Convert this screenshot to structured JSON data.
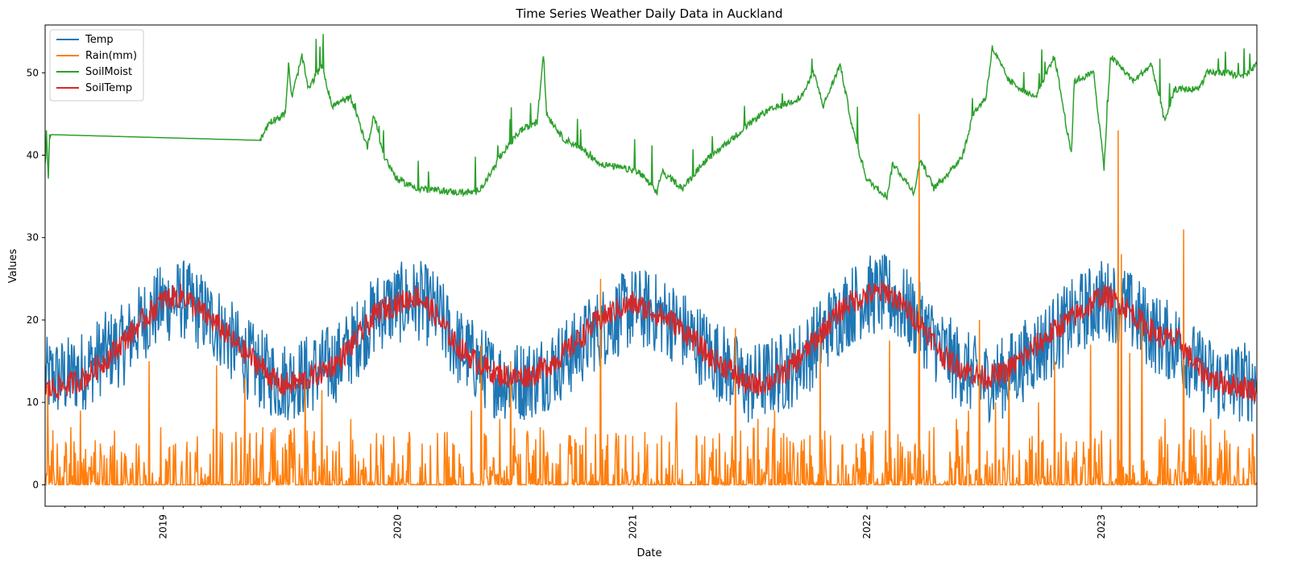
{
  "chart_data": {
    "type": "line",
    "title": "Time Series Weather Daily Data in Auckland",
    "xlabel": "Date",
    "ylabel": "Values",
    "xlim": [
      "2018-07-01",
      "2023-08-31"
    ],
    "ylim": [
      -2.6,
      55.8
    ],
    "x_ticks": [
      "2019",
      "2020",
      "2021",
      "2022",
      "2023"
    ],
    "y_ticks": [
      "0",
      "10",
      "20",
      "30",
      "40",
      "50"
    ],
    "legend_position": "top-left",
    "grid": false,
    "series": [
      {
        "name": "Temp",
        "color": "#1f77b4",
        "points": [
          [
            "2018-07-01",
            13
          ],
          [
            "2018-08-01",
            13
          ],
          [
            "2018-09-01",
            14
          ],
          [
            "2018-10-01",
            16
          ],
          [
            "2018-11-01",
            17
          ],
          [
            "2018-12-01",
            20
          ],
          [
            "2019-01-01",
            22
          ],
          [
            "2019-02-01",
            22.5
          ],
          [
            "2019-03-01",
            21
          ],
          [
            "2019-04-01",
            19
          ],
          [
            "2019-05-01",
            16
          ],
          [
            "2019-06-01",
            14
          ],
          [
            "2019-07-01",
            12.5
          ],
          [
            "2019-08-01",
            13
          ],
          [
            "2019-09-01",
            14
          ],
          [
            "2019-10-01",
            15
          ],
          [
            "2019-11-01",
            18
          ],
          [
            "2019-12-01",
            21
          ],
          [
            "2020-01-01",
            22
          ],
          [
            "2020-02-01",
            22.5
          ],
          [
            "2020-03-01",
            21
          ],
          [
            "2020-04-01",
            17
          ],
          [
            "2020-05-01",
            15
          ],
          [
            "2020-06-01",
            13
          ],
          [
            "2020-07-01",
            12.5
          ],
          [
            "2020-08-01",
            13
          ],
          [
            "2020-09-01",
            14.5
          ],
          [
            "2020-10-01",
            16
          ],
          [
            "2020-11-01",
            18.5
          ],
          [
            "2020-12-01",
            20
          ],
          [
            "2021-01-01",
            21.5
          ],
          [
            "2021-02-01",
            21
          ],
          [
            "2021-03-01",
            20
          ],
          [
            "2021-04-01",
            18
          ],
          [
            "2021-05-01",
            16
          ],
          [
            "2021-06-01",
            14
          ],
          [
            "2021-07-01",
            12
          ],
          [
            "2021-08-01",
            13
          ],
          [
            "2021-09-01",
            14
          ],
          [
            "2021-10-01",
            16
          ],
          [
            "2021-11-01",
            19
          ],
          [
            "2021-12-01",
            21.5
          ],
          [
            "2022-01-01",
            23
          ],
          [
            "2022-02-01",
            23
          ],
          [
            "2022-03-01",
            21.5
          ],
          [
            "2022-04-01",
            19
          ],
          [
            "2022-05-01",
            16
          ],
          [
            "2022-06-01",
            14
          ],
          [
            "2022-07-01",
            12.5
          ],
          [
            "2022-08-01",
            13
          ],
          [
            "2022-09-01",
            15
          ],
          [
            "2022-10-01",
            17
          ],
          [
            "2022-11-01",
            19
          ],
          [
            "2022-12-01",
            21
          ],
          [
            "2023-01-01",
            22.5
          ],
          [
            "2023-02-01",
            22
          ],
          [
            "2023-03-01",
            20
          ],
          [
            "2023-04-01",
            18
          ],
          [
            "2023-05-01",
            17
          ],
          [
            "2023-06-01",
            14
          ],
          [
            "2023-07-01",
            12.5
          ],
          [
            "2023-08-31",
            12.5
          ]
        ]
      },
      {
        "name": "Rain(mm)",
        "color": "#ff7f0e",
        "baseline": 0,
        "peaks": [
          [
            "2018-07-05",
            12
          ],
          [
            "2018-07-20",
            5
          ],
          [
            "2018-08-10",
            7
          ],
          [
            "2018-08-25",
            9
          ],
          [
            "2018-09-15",
            4
          ],
          [
            "2018-10-10",
            3
          ],
          [
            "2018-10-28",
            4
          ],
          [
            "2018-11-20",
            5
          ],
          [
            "2018-12-10",
            15
          ],
          [
            "2018-12-28",
            7
          ],
          [
            "2019-01-20",
            5
          ],
          [
            "2019-02-20",
            4
          ],
          [
            "2019-03-25",
            14.5
          ],
          [
            "2019-04-25",
            4
          ],
          [
            "2019-05-08",
            13
          ],
          [
            "2019-06-05",
            7
          ],
          [
            "2019-07-10",
            5
          ],
          [
            "2019-08-10",
            13
          ],
          [
            "2019-09-05",
            11.5
          ],
          [
            "2019-10-20",
            8
          ],
          [
            "2019-11-20",
            5
          ],
          [
            "2019-12-10",
            6
          ],
          [
            "2020-02-08",
            5
          ],
          [
            "2020-03-15",
            4
          ],
          [
            "2020-04-25",
            9
          ],
          [
            "2020-05-10",
            17
          ],
          [
            "2020-06-08",
            8
          ],
          [
            "2020-06-25",
            15
          ],
          [
            "2020-07-20",
            6
          ],
          [
            "2020-08-10",
            7
          ],
          [
            "2020-09-10",
            5
          ],
          [
            "2020-10-20",
            7
          ],
          [
            "2020-11-12",
            25
          ],
          [
            "2020-12-10",
            6
          ],
          [
            "2021-01-10",
            4
          ],
          [
            "2021-02-08",
            5
          ],
          [
            "2021-03-10",
            10
          ],
          [
            "2021-04-10",
            6
          ],
          [
            "2021-05-25",
            4
          ],
          [
            "2021-06-10",
            19
          ],
          [
            "2021-07-15",
            8
          ],
          [
            "2021-08-10",
            9
          ],
          [
            "2021-09-20",
            4
          ],
          [
            "2021-10-20",
            18
          ],
          [
            "2021-11-05",
            6
          ],
          [
            "2021-12-15",
            5
          ],
          [
            "2022-02-05",
            17.5
          ],
          [
            "2022-03-23",
            45
          ],
          [
            "2022-04-15",
            7
          ],
          [
            "2022-05-20",
            8
          ],
          [
            "2022-06-08",
            9
          ],
          [
            "2022-06-25",
            20
          ],
          [
            "2022-07-20",
            10
          ],
          [
            "2022-08-10",
            14
          ],
          [
            "2022-09-25",
            10
          ],
          [
            "2022-10-20",
            15
          ],
          [
            "2022-11-20",
            4
          ],
          [
            "2022-12-15",
            17
          ],
          [
            "2023-01-27",
            43
          ],
          [
            "2023-02-01",
            28
          ],
          [
            "2023-02-14",
            16
          ],
          [
            "2023-03-05",
            21
          ],
          [
            "2023-04-10",
            8
          ],
          [
            "2023-05-09",
            31
          ],
          [
            "2023-05-20",
            7
          ],
          [
            "2023-06-20",
            8
          ],
          [
            "2023-07-20",
            5
          ],
          [
            "2023-08-20",
            3
          ]
        ]
      },
      {
        "name": "SoilMoist",
        "color": "#2ca02c",
        "points": [
          [
            "2018-07-01",
            36.5
          ],
          [
            "2018-07-03",
            43
          ],
          [
            "2018-07-06",
            37.5
          ],
          [
            "2018-07-08",
            42.5
          ],
          [
            "2019-06-01",
            41.8
          ],
          [
            "2019-06-15",
            44
          ],
          [
            "2019-07-10",
            45
          ],
          [
            "2019-07-15",
            51
          ],
          [
            "2019-07-20",
            47
          ],
          [
            "2019-08-05",
            52
          ],
          [
            "2019-08-15",
            48
          ],
          [
            "2019-09-05",
            51
          ],
          [
            "2019-09-20",
            46
          ],
          [
            "2019-10-20",
            47
          ],
          [
            "2019-11-15",
            41
          ],
          [
            "2019-11-25",
            45
          ],
          [
            "2019-12-10",
            40
          ],
          [
            "2020-01-01",
            37
          ],
          [
            "2020-02-01",
            36
          ],
          [
            "2020-04-01",
            35.5
          ],
          [
            "2020-05-01",
            35.5
          ],
          [
            "2020-05-15",
            36.5
          ],
          [
            "2020-06-10",
            40
          ],
          [
            "2020-07-10",
            43
          ],
          [
            "2020-08-05",
            44
          ],
          [
            "2020-08-15",
            52
          ],
          [
            "2020-08-20",
            45
          ],
          [
            "2020-09-15",
            42
          ],
          [
            "2020-10-10",
            41
          ],
          [
            "2020-11-10",
            39
          ],
          [
            "2021-01-10",
            38
          ],
          [
            "2021-02-08",
            35.5
          ],
          [
            "2021-02-15",
            38
          ],
          [
            "2021-03-20",
            36
          ],
          [
            "2021-04-20",
            39
          ],
          [
            "2021-05-20",
            41
          ],
          [
            "2021-06-20",
            43
          ],
          [
            "2021-07-20",
            45
          ],
          [
            "2021-08-20",
            46
          ],
          [
            "2021-09-20",
            47
          ],
          [
            "2021-10-10",
            50
          ],
          [
            "2021-10-25",
            46
          ],
          [
            "2021-11-20",
            51
          ],
          [
            "2021-12-10",
            43
          ],
          [
            "2022-01-01",
            37
          ],
          [
            "2022-02-01",
            35
          ],
          [
            "2022-02-10",
            39
          ],
          [
            "2022-03-15",
            35.5
          ],
          [
            "2022-03-25",
            39.5
          ],
          [
            "2022-04-15",
            36
          ],
          [
            "2022-05-10",
            38
          ],
          [
            "2022-05-30",
            40
          ],
          [
            "2022-06-15",
            45
          ],
          [
            "2022-07-05",
            47
          ],
          [
            "2022-07-15",
            53
          ],
          [
            "2022-08-10",
            49
          ],
          [
            "2022-09-20",
            47
          ],
          [
            "2022-10-20",
            52
          ],
          [
            "2022-11-15",
            40
          ],
          [
            "2022-11-20",
            49
          ],
          [
            "2022-12-20",
            50
          ],
          [
            "2023-01-05",
            38.5
          ],
          [
            "2023-01-15",
            52
          ],
          [
            "2023-02-20",
            49
          ],
          [
            "2023-03-20",
            51
          ],
          [
            "2023-04-10",
            44
          ],
          [
            "2023-04-25",
            48
          ],
          [
            "2023-06-01",
            48
          ],
          [
            "2023-06-15",
            50
          ],
          [
            "2023-07-15",
            50
          ],
          [
            "2023-08-10",
            49.5
          ],
          [
            "2023-08-31",
            51
          ]
        ]
      },
      {
        "name": "SoilTemp",
        "color": "#d62728",
        "points": [
          [
            "2018-07-01",
            11.5
          ],
          [
            "2018-08-01",
            12
          ],
          [
            "2018-09-01",
            13
          ],
          [
            "2018-10-01",
            15
          ],
          [
            "2018-11-01",
            17.5
          ],
          [
            "2018-12-01",
            20
          ],
          [
            "2019-01-01",
            22.5
          ],
          [
            "2019-02-01",
            23
          ],
          [
            "2019-03-01",
            21
          ],
          [
            "2019-04-01",
            19
          ],
          [
            "2019-05-01",
            16.5
          ],
          [
            "2019-06-01",
            14.5
          ],
          [
            "2019-07-01",
            12
          ],
          [
            "2019-08-01",
            12.5
          ],
          [
            "2019-09-01",
            13.5
          ],
          [
            "2019-10-01",
            15
          ],
          [
            "2019-11-01",
            18
          ],
          [
            "2019-12-01",
            21
          ],
          [
            "2020-01-01",
            22
          ],
          [
            "2020-02-01",
            23
          ],
          [
            "2020-03-01",
            20.5
          ],
          [
            "2020-04-01",
            17
          ],
          [
            "2020-05-01",
            15
          ],
          [
            "2020-06-01",
            13.5
          ],
          [
            "2020-07-01",
            13
          ],
          [
            "2020-08-01",
            13.5
          ],
          [
            "2020-09-01",
            15
          ],
          [
            "2020-10-01",
            17
          ],
          [
            "2020-11-01",
            19.5
          ],
          [
            "2020-12-01",
            21
          ],
          [
            "2021-01-01",
            22
          ],
          [
            "2021-02-01",
            21
          ],
          [
            "2021-03-01",
            20
          ],
          [
            "2021-04-01",
            18
          ],
          [
            "2021-05-01",
            15.5
          ],
          [
            "2021-06-01",
            14
          ],
          [
            "2021-07-01",
            12
          ],
          [
            "2021-08-01",
            12.5
          ],
          [
            "2021-09-01",
            14
          ],
          [
            "2021-10-01",
            16.5
          ],
          [
            "2021-11-01",
            19.5
          ],
          [
            "2021-12-01",
            22
          ],
          [
            "2022-01-01",
            23
          ],
          [
            "2022-02-01",
            23.5
          ],
          [
            "2022-03-01",
            21.5
          ],
          [
            "2022-04-01",
            19
          ],
          [
            "2022-05-01",
            15.5
          ],
          [
            "2022-06-01",
            14
          ],
          [
            "2022-07-01",
            13
          ],
          [
            "2022-08-01",
            13.5
          ],
          [
            "2022-09-01",
            15.5
          ],
          [
            "2022-10-01",
            17.5
          ],
          [
            "2022-11-01",
            19.5
          ],
          [
            "2022-12-01",
            21
          ],
          [
            "2023-01-01",
            23
          ],
          [
            "2023-02-01",
            22
          ],
          [
            "2023-03-01",
            20
          ],
          [
            "2023-04-01",
            18
          ],
          [
            "2023-05-01",
            17.5
          ],
          [
            "2023-06-01",
            14
          ],
          [
            "2023-07-01",
            12.5
          ],
          [
            "2023-08-31",
            11.5
          ]
        ]
      }
    ]
  }
}
